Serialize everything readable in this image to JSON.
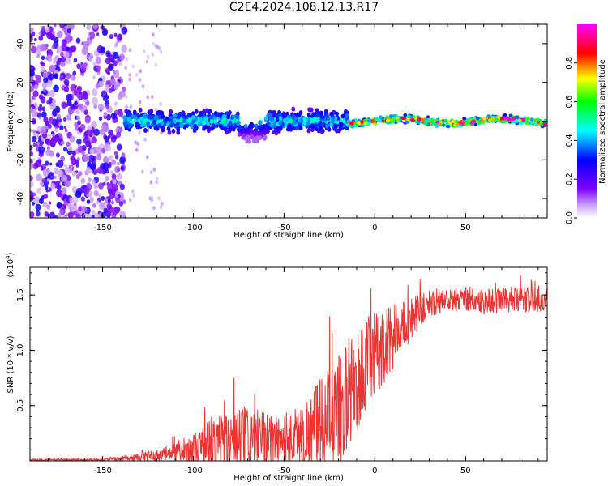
{
  "title": "C2E4.2024.108.12.13.R17",
  "chart_data": [
    {
      "type": "heatmap",
      "xlabel": "Height of straight line (km)",
      "ylabel": "Frequency (Hz)",
      "xlim": [
        -190,
        95
      ],
      "ylim": [
        -50,
        50
      ],
      "x_ticks": [
        -150,
        -100,
        -50,
        0,
        50
      ],
      "y_ticks": [
        -40,
        -20,
        0,
        20,
        40
      ],
      "colorbar": {
        "label": "Normalized spectral amplitude",
        "range": [
          0,
          1
        ],
        "ticks": [
          0.0,
          0.2,
          0.4,
          0.6,
          0.8
        ],
        "tick_labels": [
          "0.0",
          "0.2",
          "0.4",
          "0.6",
          "0.8"
        ],
        "colormap": [
          "#ffffff",
          "#7f00ff",
          "#0000ff",
          "#00ffff",
          "#00ff00",
          "#ffff00",
          "#ff0000",
          "#ff00ff"
        ]
      },
      "regions": [
        {
          "x_range": [
            -190,
            -138
          ],
          "freq_range": [
            -50,
            50
          ],
          "amplitude": [
            0.05,
            0.3
          ],
          "pattern": "scattered noise"
        },
        {
          "x_range": [
            -138,
            -15
          ],
          "freq_center": 0,
          "freq_spread": 8,
          "amplitude": [
            0.2,
            0.5
          ],
          "pattern": "band"
        },
        {
          "x_range": [
            -15,
            95
          ],
          "freq_center": 0,
          "freq_spread": 3,
          "amplitude": [
            0.4,
            1.0
          ],
          "pattern": "narrow line"
        }
      ]
    },
    {
      "type": "line",
      "xlabel": "Height of straight line (km)",
      "ylabel": "SNR (10 * v/v)",
      "y_scale_label": "(x10",
      "y_scale_exp": "4",
      "xlim": [
        -190,
        95
      ],
      "ylim": [
        0,
        1.75
      ],
      "x_ticks": [
        -150,
        -100,
        -50,
        0,
        50
      ],
      "y_ticks": [
        0.5,
        1.0,
        1.5
      ],
      "y_tick_labels": [
        "0.5",
        "1.0",
        "1.5"
      ],
      "series_color": "#ee3333",
      "series": [
        {
          "x": [
            -190,
            -150,
            -140,
            -130,
            -120,
            -110,
            -100,
            -90,
            -80,
            -70,
            -60,
            -50,
            -40,
            -30,
            -20,
            -15,
            -10,
            -5,
            0,
            5,
            10,
            15,
            20,
            25,
            30,
            40,
            50,
            60,
            70,
            80,
            95
          ],
          "y": [
            0.01,
            0.01,
            0.02,
            0.04,
            0.05,
            0.07,
            0.1,
            0.15,
            0.17,
            0.2,
            0.18,
            0.2,
            0.22,
            0.35,
            0.45,
            0.6,
            0.7,
            0.85,
            0.95,
            1.05,
            1.1,
            1.2,
            1.3,
            1.35,
            1.43,
            1.45,
            1.47,
            1.44,
            1.46,
            1.45,
            1.47
          ],
          "spread": [
            0.01,
            0.01,
            0.02,
            0.04,
            0.05,
            0.1,
            0.15,
            0.25,
            0.3,
            0.3,
            0.25,
            0.25,
            0.3,
            0.4,
            0.5,
            0.5,
            0.5,
            0.45,
            0.4,
            0.35,
            0.3,
            0.25,
            0.2,
            0.15,
            0.12,
            0.12,
            0.12,
            0.12,
            0.12,
            0.12,
            0.12
          ]
        }
      ]
    }
  ]
}
